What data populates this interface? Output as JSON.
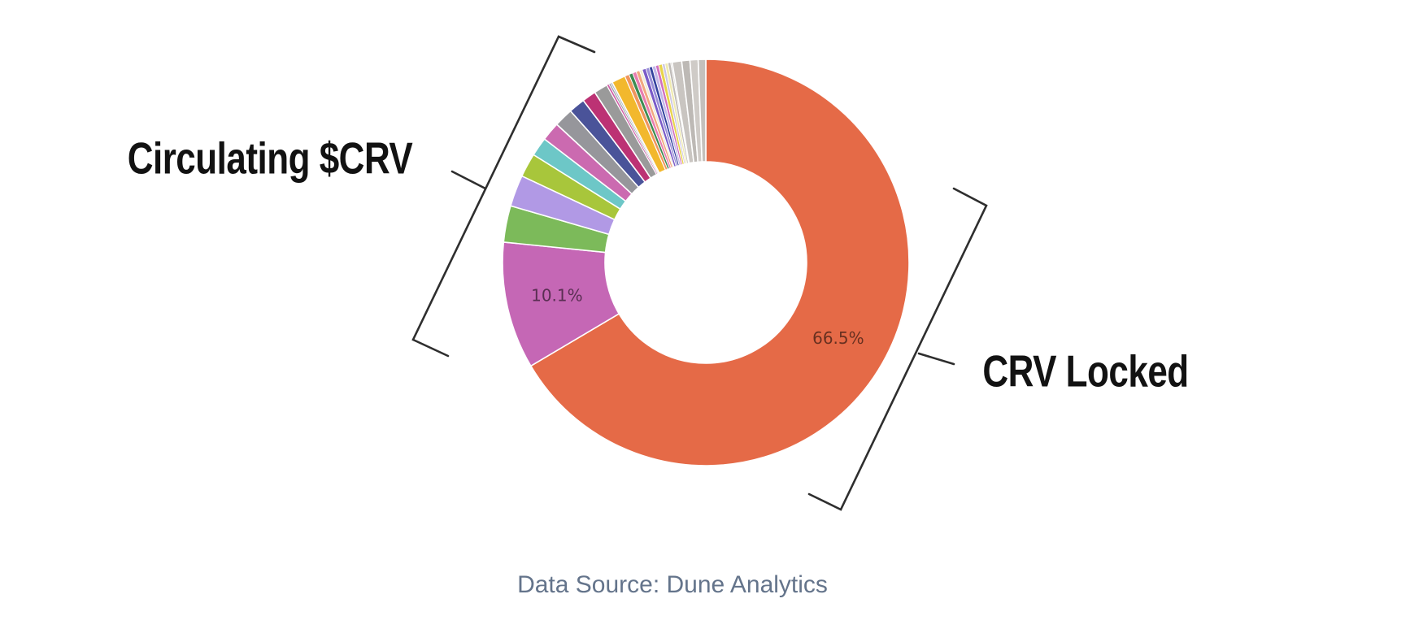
{
  "page": {
    "background": "#ffffff"
  },
  "labels": {
    "circulating": "Circulating $CRV",
    "locked": "CRV Locked"
  },
  "caption": {
    "text": "Data Source: Dune Analytics",
    "color": "#64748B"
  },
  "chart_data": {
    "type": "pie",
    "style": "donut",
    "hole_ratio": 0.5,
    "direction": "clockwise",
    "start_angle": "12-oclock",
    "legend_position": "none",
    "pct_label_color": "rgba(0,0,0,0.55)",
    "annotations": {
      "left_bracket_label": "Circulating $CRV",
      "right_bracket_label": "CRV Locked",
      "caption": "Data Source: Dune Analytics"
    },
    "slices": [
      {
        "label": "CRV Locked",
        "value": 66.5,
        "pct_label": "66.5%",
        "color": "#E56A47"
      },
      {
        "label": "Circulating $CRV",
        "value": 10.1,
        "pct_label": "10.1%",
        "color": "#C567B5"
      },
      {
        "label": "",
        "value": 2.9,
        "color": "#7CBA5A"
      },
      {
        "label": "",
        "value": 2.5,
        "color": "#B199E5"
      },
      {
        "label": "",
        "value": 1.9,
        "color": "#A8C63B"
      },
      {
        "label": "",
        "value": 1.5,
        "color": "#6DC7C7"
      },
      {
        "label": "",
        "value": 1.5,
        "color": "#CB6AB0"
      },
      {
        "label": "",
        "value": 1.5,
        "color": "#96969B"
      },
      {
        "label": "",
        "value": 1.3,
        "color": "#4A5399"
      },
      {
        "label": "",
        "value": 1.1,
        "color": "#BC3274"
      },
      {
        "label": "",
        "value": 1.1,
        "color": "#9A9A9A"
      },
      {
        "label": "",
        "value": 0.18,
        "color": "#D060A8"
      },
      {
        "label": "",
        "value": 0.15,
        "color": "#9FA4AA"
      },
      {
        "label": "",
        "value": 0.15,
        "color": "#AEB8C8"
      },
      {
        "label": "",
        "value": 1.1,
        "color": "#F2B82D"
      },
      {
        "label": "",
        "value": 0.35,
        "color": "#F0955E"
      },
      {
        "label": "",
        "value": 0.3,
        "color": "#3D8B52"
      },
      {
        "label": "",
        "value": 0.3,
        "color": "#E87EB0"
      },
      {
        "label": "",
        "value": 0.28,
        "color": "#F2A880"
      },
      {
        "label": "",
        "value": 0.22,
        "color": "#F0ECD4"
      },
      {
        "label": "",
        "value": 0.3,
        "color": "#7A5BC8"
      },
      {
        "label": "",
        "value": 0.27,
        "color": "#9A8FD8"
      },
      {
        "label": "",
        "value": 0.25,
        "color": "#33429E"
      },
      {
        "label": "",
        "value": 0.27,
        "color": "#C3B7E9"
      },
      {
        "label": "",
        "value": 0.25,
        "color": "#D070C0"
      },
      {
        "label": "",
        "value": 0.28,
        "color": "#E8D44A"
      },
      {
        "label": "",
        "value": 0.22,
        "color": "#CDC7E2"
      },
      {
        "label": "",
        "value": 0.24,
        "color": "#EFEAB0"
      },
      {
        "label": "",
        "value": 0.22,
        "color": "#BFBBB8"
      },
      {
        "label": "",
        "value": 0.12,
        "color": "#D3CFCB"
      },
      {
        "label": "",
        "value": 0.75,
        "color": "#C9C5C1"
      },
      {
        "label": "",
        "value": 0.65,
        "color": "#BDB9B5"
      },
      {
        "label": "",
        "value": 0.65,
        "color": "#CFCBC7"
      },
      {
        "label": "",
        "value": 0.6,
        "color": "#C4C0BC"
      }
    ]
  }
}
